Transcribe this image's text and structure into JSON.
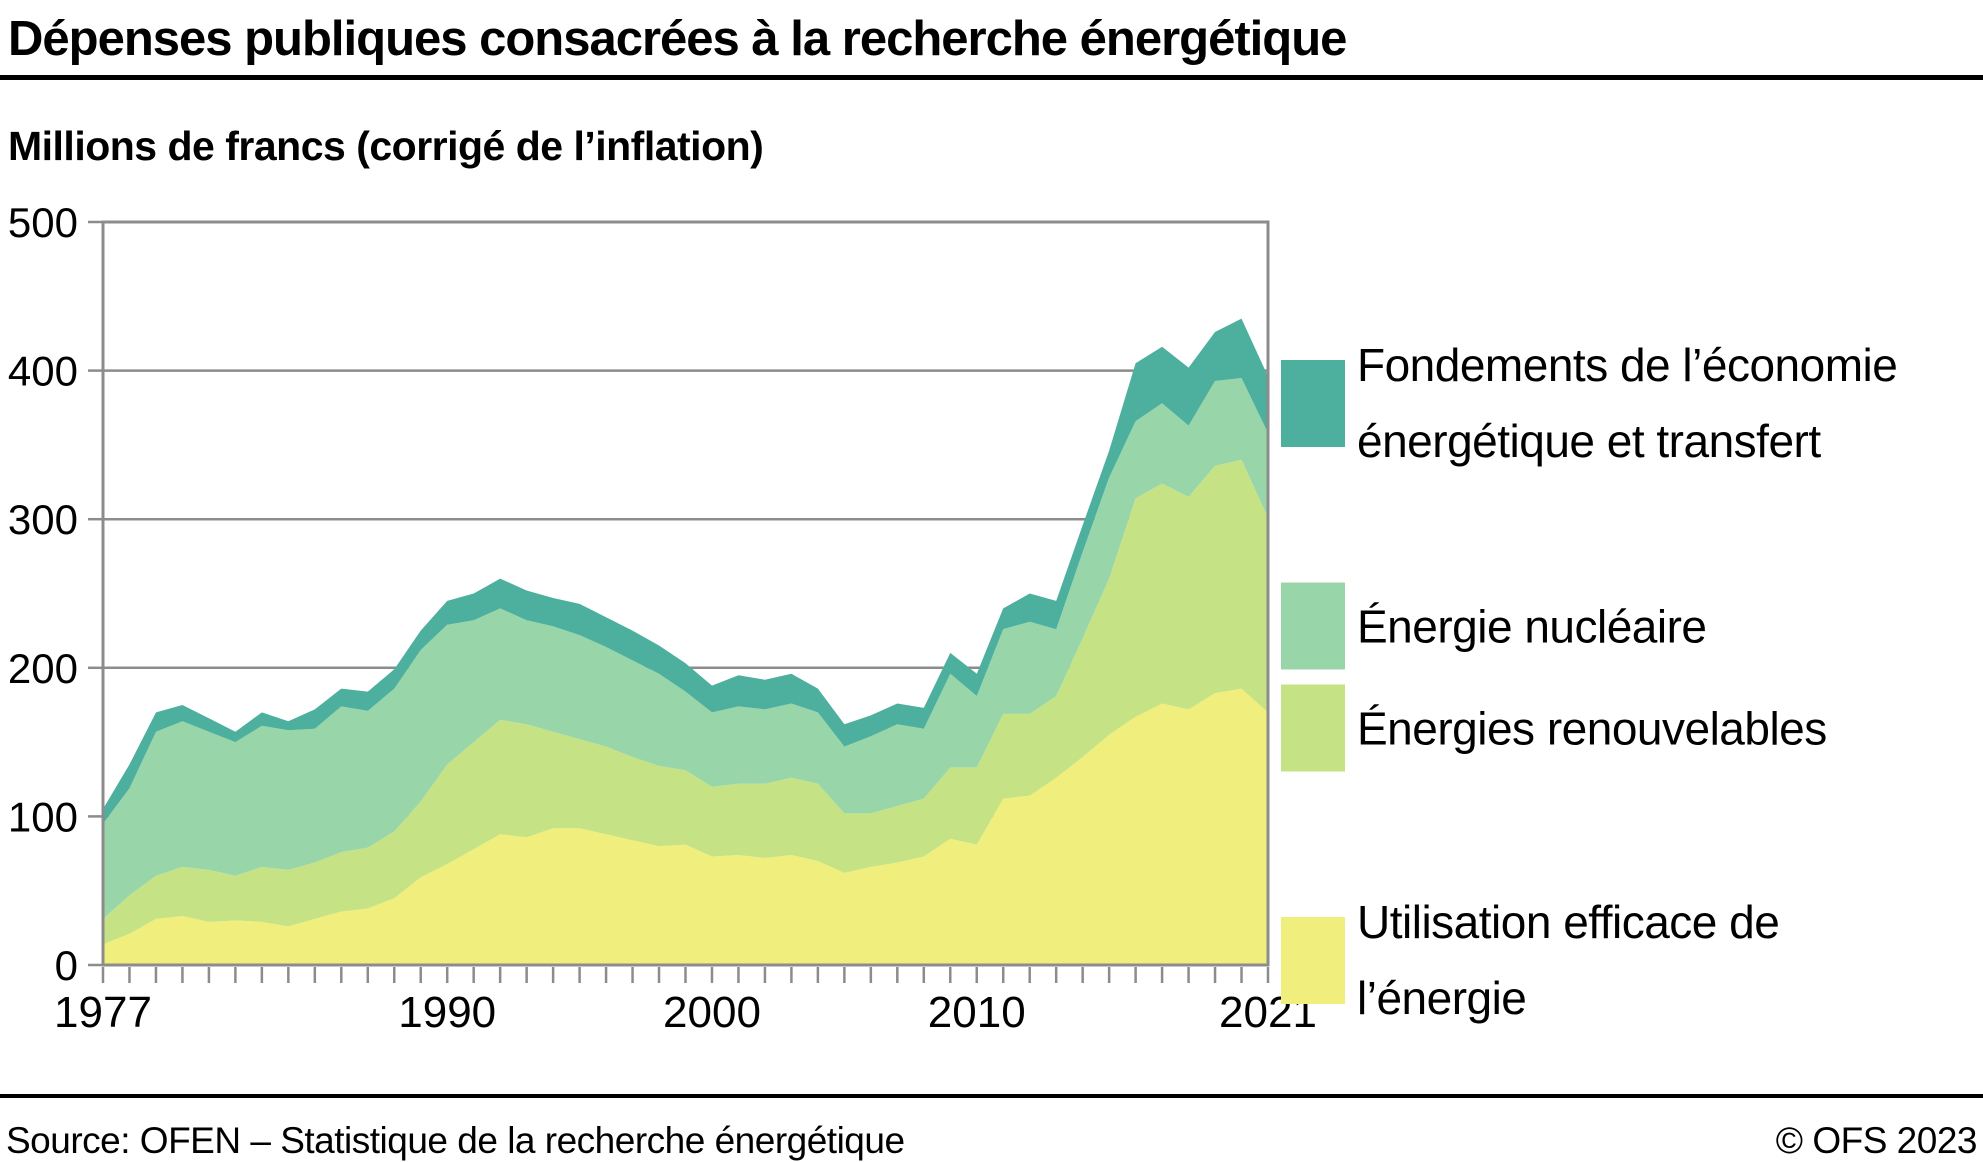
{
  "title": "Dépenses publiques consacrées à la recherche énergétique",
  "subtitle": "Millions de francs (corrigé de l’inflation)",
  "footer": {
    "source": "Source: OFEN – Statistique de la recherche énergétique",
    "copyright": "© OFS 2023"
  },
  "colors": {
    "fondements": "#4DAF9E",
    "nucleaire": "#98D5A9",
    "renouvelables": "#C5E284",
    "efficace": "#F0EE7D",
    "axis": "#8C8C8C",
    "text": "#000000"
  },
  "legend": [
    {
      "label": "Fondements de l’économie énergétique et transfert",
      "color": "#4DAF9E"
    },
    {
      "label": "Énergie nucléaire",
      "color": "#98D5A9"
    },
    {
      "label": "Énergies renouvelables",
      "color": "#C5E284"
    },
    {
      "label": "Utilisation efficace de l’énergie",
      "color": "#F0EE7D"
    }
  ],
  "chart_data": {
    "type": "area",
    "stacked": true,
    "title": "Dépenses publiques consacrées à la recherche énergétique",
    "ylabel": "Millions de francs (corrigé de l’inflation)",
    "xlabel": "",
    "x_min": 1977,
    "x_max": 2021,
    "ylim": [
      0,
      500
    ],
    "y_ticks": [
      0,
      100,
      200,
      300,
      400,
      500
    ],
    "x_tick_labels": [
      1977,
      1990,
      2000,
      2010,
      2021
    ],
    "grid": "horizontal",
    "legend_position": "right",
    "years": [
      1977,
      1978,
      1979,
      1980,
      1981,
      1982,
      1983,
      1984,
      1985,
      1986,
      1987,
      1988,
      1989,
      1990,
      1991,
      1992,
      1993,
      1994,
      1995,
      1996,
      1997,
      1998,
      1999,
      2000,
      2001,
      2002,
      2003,
      2004,
      2005,
      2006,
      2007,
      2008,
      2009,
      2010,
      2011,
      2012,
      2013,
      2014,
      2015,
      2016,
      2017,
      2018,
      2019,
      2020,
      2021
    ],
    "series": [
      {
        "name": "Utilisation efficace de l’énergie",
        "color": "#F0EE7D",
        "values": [
          14,
          21,
          31,
          33,
          29,
          30,
          29,
          26,
          31,
          36,
          38,
          45,
          59,
          68,
          78,
          88,
          86,
          92,
          92,
          88,
          84,
          80,
          81,
          73,
          74,
          72,
          74,
          70,
          62,
          66,
          69,
          73,
          85,
          81,
          112,
          114,
          126,
          140,
          155,
          167,
          176,
          172,
          183,
          186,
          170
        ]
      },
      {
        "name": "Énergies renouvelables",
        "color": "#C5E284",
        "values": [
          17,
          26,
          29,
          33,
          35,
          30,
          37,
          38,
          38,
          40,
          41,
          45,
          51,
          67,
          72,
          77,
          76,
          65,
          60,
          59,
          56,
          54,
          50,
          47,
          48,
          50,
          52,
          52,
          40,
          36,
          38,
          39,
          48,
          52,
          57,
          55,
          55,
          80,
          105,
          147,
          148,
          143,
          153,
          154,
          131
        ]
      },
      {
        "name": "Énergie nucléaire",
        "color": "#98D5A9",
        "values": [
          64,
          72,
          97,
          98,
          93,
          90,
          95,
          94,
          90,
          98,
          92,
          96,
          102,
          94,
          82,
          75,
          70,
          71,
          70,
          67,
          65,
          62,
          53,
          50,
          52,
          50,
          50,
          48,
          45,
          52,
          55,
          47,
          63,
          48,
          57,
          62,
          45,
          58,
          68,
          52,
          54,
          48,
          57,
          55,
          57
        ]
      },
      {
        "name": "Fondements de l’économie énergétique et transfert",
        "color": "#4DAF9E",
        "values": [
          10,
          16,
          13,
          11,
          9,
          7,
          9,
          6,
          13,
          12,
          13,
          13,
          13,
          16,
          18,
          20,
          20,
          19,
          21,
          20,
          20,
          19,
          19,
          18,
          21,
          20,
          20,
          16,
          15,
          14,
          14,
          14,
          14,
          15,
          14,
          19,
          19,
          18,
          18,
          39,
          38,
          39,
          33,
          40,
          38
        ]
      }
    ]
  }
}
